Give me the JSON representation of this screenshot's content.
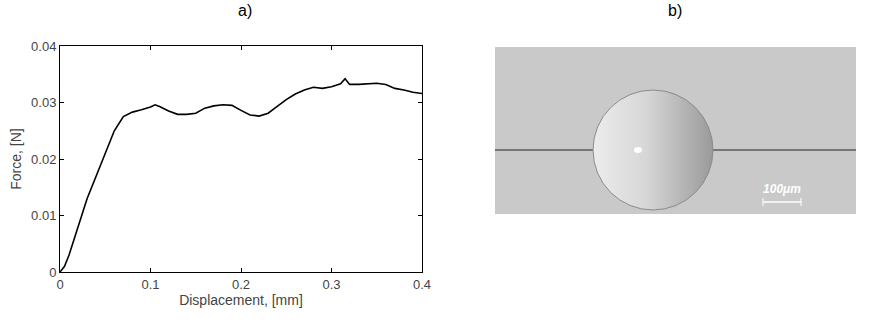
{
  "panel_labels": [
    "a)",
    "b)"
  ],
  "chart_data": {
    "type": "line",
    "x_label": "Displacement, [mm]",
    "y_label": "Force, [N]",
    "x": [
      0,
      0.005,
      0.01,
      0.02,
      0.03,
      0.04,
      0.05,
      0.06,
      0.07,
      0.08,
      0.09,
      0.1,
      0.105,
      0.11,
      0.12,
      0.13,
      0.14,
      0.15,
      0.16,
      0.17,
      0.18,
      0.19,
      0.2,
      0.21,
      0.22,
      0.23,
      0.24,
      0.25,
      0.26,
      0.27,
      0.28,
      0.29,
      0.3,
      0.31,
      0.315,
      0.32,
      0.33,
      0.34,
      0.35,
      0.36,
      0.37,
      0.38,
      0.39,
      0.4
    ],
    "values": [
      0,
      0.001,
      0.003,
      0.008,
      0.013,
      0.017,
      0.021,
      0.025,
      0.0275,
      0.0283,
      0.0287,
      0.0292,
      0.0296,
      0.0293,
      0.0285,
      0.0279,
      0.0279,
      0.0281,
      0.029,
      0.0294,
      0.0296,
      0.0295,
      0.0286,
      0.0278,
      0.0276,
      0.0281,
      0.0293,
      0.0305,
      0.0315,
      0.0322,
      0.0327,
      0.0325,
      0.0328,
      0.0333,
      0.0342,
      0.0332,
      0.0332,
      0.0333,
      0.0334,
      0.0332,
      0.0325,
      0.0322,
      0.0318,
      0.0316
    ],
    "color": "#000000",
    "xlim": [
      0,
      0.4
    ],
    "xticks": [
      0,
      0.1,
      0.2,
      0.3,
      0.4
    ],
    "ylim": [
      0,
      0.04
    ],
    "yticks": [
      0,
      0.01,
      0.02,
      0.03,
      0.04
    ],
    "grid": false
  },
  "image": {
    "scale_bar": "100μm"
  }
}
